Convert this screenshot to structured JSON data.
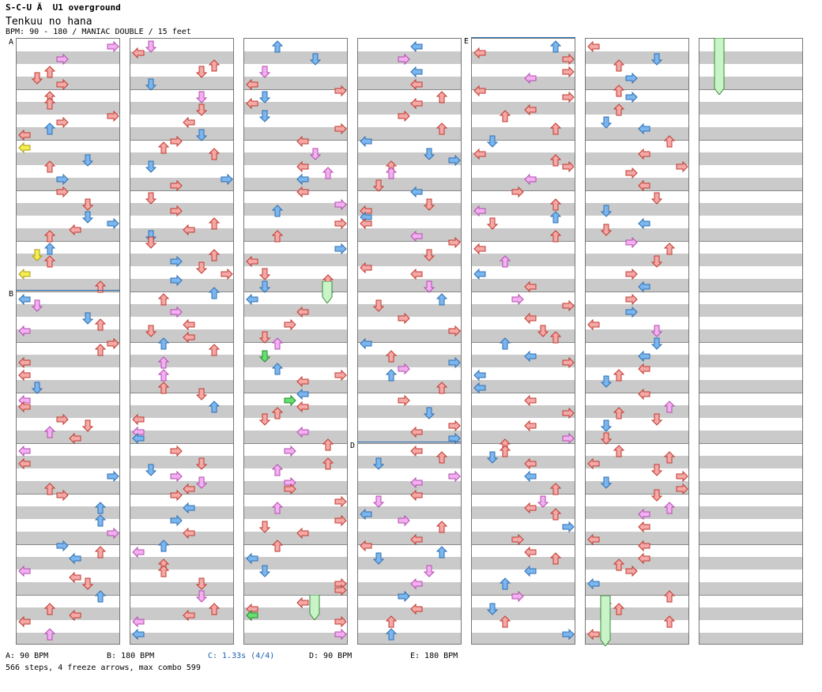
{
  "header": {
    "game_title": "S-C-U Ă  U1 overground",
    "song_title": "Tenkuu no hana",
    "chart_info": "BPM: 90 - 180 / MANIAC DOUBLE / 15 feet"
  },
  "sections": {
    "a": "A",
    "b": "B",
    "d": "D",
    "e": "E"
  },
  "footer": {
    "bpm_a": "A: 90 BPM",
    "bpm_b": "B: 180 BPM",
    "bpm_c": "C: 1.33s (4/4)",
    "bpm_d": "D: 90 BPM",
    "bpm_e": "E: 180 BPM",
    "stats": "566 steps, 4 freeze arrows, max combo 599"
  },
  "colors": {
    "quarter": "#f4a8a8",
    "eighth": "#7cb6ee",
    "sixteenth": "#f2b0f0",
    "twelfth": "#f2ee50",
    "twentyfourth": "#68e070",
    "freeze": "#c8f4c8",
    "section_line": "#2a6ab0"
  },
  "arrow_icons": {
    "left": "left-arrow-icon",
    "down": "down-arrow-icon",
    "up": "up-arrow-icon",
    "right": "right-arrow-icon"
  }
}
